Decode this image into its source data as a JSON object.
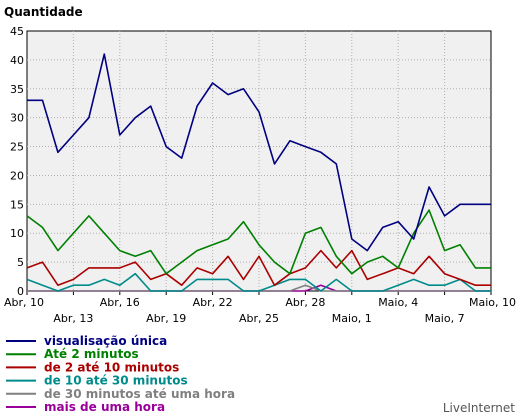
{
  "chart_data": {
    "type": "line",
    "title": "Quantidade",
    "xlabel": "",
    "ylabel": "",
    "ylim": [
      0,
      45
    ],
    "yticks": [
      0,
      5,
      10,
      15,
      20,
      25,
      30,
      35,
      40,
      45
    ],
    "grid": true,
    "legend_position": "bottom-left",
    "x": [
      "Abr, 10",
      "Abr, 11",
      "Abr, 12",
      "Abr, 13",
      "Abr, 14",
      "Abr, 15",
      "Abr, 16",
      "Abr, 17",
      "Abr, 18",
      "Abr, 19",
      "Abr, 20",
      "Abr, 21",
      "Abr, 22",
      "Abr, 23",
      "Abr, 24",
      "Abr, 25",
      "Abr, 26",
      "Abr, 27",
      "Abr, 28",
      "Abr, 29",
      "Abr, 30",
      "Maio, 1",
      "Maio, 2",
      "Maio, 3",
      "Maio, 4",
      "Maio, 5",
      "Maio, 6",
      "Maio, 7",
      "Maio, 8",
      "Maio, 9",
      "Maio, 10"
    ],
    "tick_labels": [
      {
        "label": "Abr, 10",
        "index": 0,
        "row": 0
      },
      {
        "label": "Abr, 13",
        "index": 3,
        "row": 1
      },
      {
        "label": "Abr, 16",
        "index": 6,
        "row": 0
      },
      {
        "label": "Abr, 19",
        "index": 9,
        "row": 1
      },
      {
        "label": "Abr, 22",
        "index": 12,
        "row": 0
      },
      {
        "label": "Abr, 25",
        "index": 15,
        "row": 1
      },
      {
        "label": "Abr, 28",
        "index": 18,
        "row": 0
      },
      {
        "label": "Maio, 1",
        "index": 21,
        "row": 1
      },
      {
        "label": "Maio, 4",
        "index": 24,
        "row": 0
      },
      {
        "label": "Maio, 7",
        "index": 27,
        "row": 1
      },
      {
        "label": "Maio, 10",
        "index": 30,
        "row": 0
      }
    ],
    "series": [
      {
        "name": "visualisação única",
        "color": "#000080",
        "values": [
          33,
          33,
          24,
          27,
          30,
          41,
          27,
          30,
          32,
          25,
          23,
          32,
          36,
          34,
          35,
          31,
          22,
          26,
          25,
          24,
          22,
          9,
          7,
          11,
          12,
          9,
          18,
          13,
          15,
          15,
          15
        ]
      },
      {
        "name": "Até 2 minutos",
        "color": "#008000",
        "values": [
          13,
          11,
          7,
          10,
          13,
          10,
          7,
          6,
          7,
          3,
          5,
          7,
          8,
          9,
          12,
          8,
          5,
          3,
          10,
          11,
          6,
          3,
          5,
          6,
          4,
          10,
          14,
          7,
          8,
          4,
          4
        ]
      },
      {
        "name": "de 2 até 10 minutos",
        "color": "#aa0000",
        "values": [
          4,
          5,
          1,
          2,
          4,
          4,
          4,
          5,
          2,
          3,
          1,
          4,
          3,
          6,
          2,
          6,
          1,
          3,
          4,
          7,
          4,
          7,
          2,
          3,
          4,
          3,
          6,
          3,
          2,
          1,
          1
        ]
      },
      {
        "name": "de 10 até 30 minutos",
        "color": "#008b8b",
        "values": [
          2,
          1,
          0,
          1,
          1,
          2,
          1,
          3,
          0,
          0,
          0,
          2,
          2,
          2,
          0,
          0,
          1,
          2,
          2,
          0,
          2,
          0,
          0,
          0,
          1,
          2,
          1,
          1,
          2,
          0,
          0
        ]
      },
      {
        "name": "de 30 minutos até uma hora",
        "color": "#808080",
        "values": [
          0,
          0,
          0,
          0,
          0,
          0,
          0,
          0,
          0,
          0,
          0,
          0,
          0,
          0,
          0,
          0,
          0,
          0,
          1,
          0,
          0,
          0,
          0,
          0,
          0,
          0,
          0,
          0,
          0,
          0,
          0
        ]
      },
      {
        "name": "mais de uma hora",
        "color": "#990099",
        "values": [
          0,
          0,
          0,
          0,
          0,
          0,
          0,
          0,
          0,
          0,
          0,
          0,
          0,
          0,
          0,
          0,
          0,
          0,
          0,
          1,
          0,
          0,
          0,
          0,
          0,
          0,
          0,
          0,
          0,
          0,
          0
        ]
      }
    ]
  },
  "credit": "LiveInternet"
}
